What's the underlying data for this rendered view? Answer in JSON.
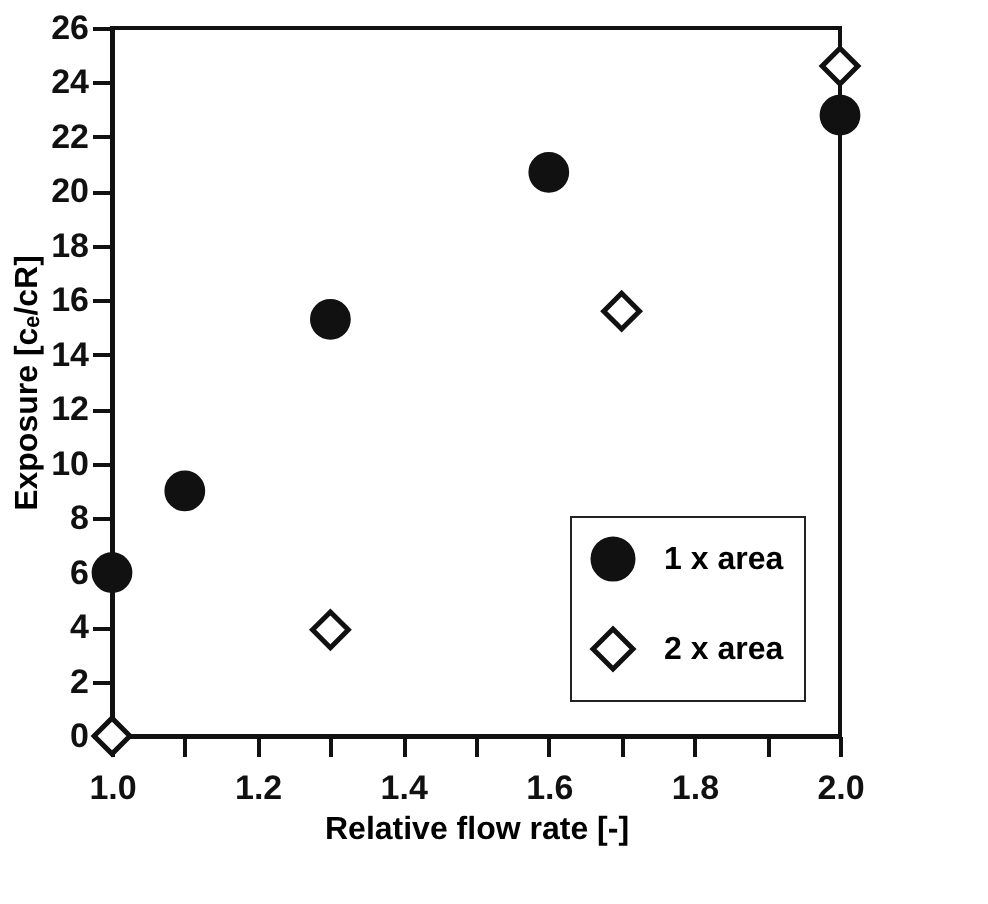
{
  "chart_data": {
    "type": "scatter",
    "xlabel": "Relative flow rate [-]",
    "ylabel": "Exposure [cₑ/cR]",
    "xlim": [
      1.0,
      2.0
    ],
    "ylim": [
      0,
      26
    ],
    "xticks": [
      {
        "value": 1.0,
        "label": "1.0"
      },
      {
        "value": 1.1,
        "label": null
      },
      1.2,
      {
        "value": 1.3,
        "label": null
      },
      1.4,
      {
        "value": 1.5,
        "label": null
      },
      1.6,
      {
        "value": 1.7,
        "label": null
      },
      1.8,
      {
        "value": 1.9,
        "label": null
      },
      {
        "value": 2.0,
        "label": "2.0"
      }
    ],
    "yticks": [
      0,
      2,
      4,
      6,
      8,
      10,
      12,
      14,
      16,
      18,
      20,
      22,
      24,
      26
    ],
    "grid": false,
    "legend": "bottom right",
    "series": [
      {
        "name": "1 x area",
        "color": "#111111",
        "marker": "circle",
        "x": [
          1.0,
          1.1,
          1.3,
          1.6,
          2.0
        ],
        "values": [
          6,
          9.0,
          15.3,
          20.7,
          22.8
        ]
      },
      {
        "name": "2 x area",
        "color": "#ffffff",
        "marker": "diamond",
        "x": [
          1.0,
          1.3,
          1.7,
          2.0
        ],
        "values": [
          0,
          3.9,
          15.6,
          24.6
        ]
      }
    ]
  }
}
